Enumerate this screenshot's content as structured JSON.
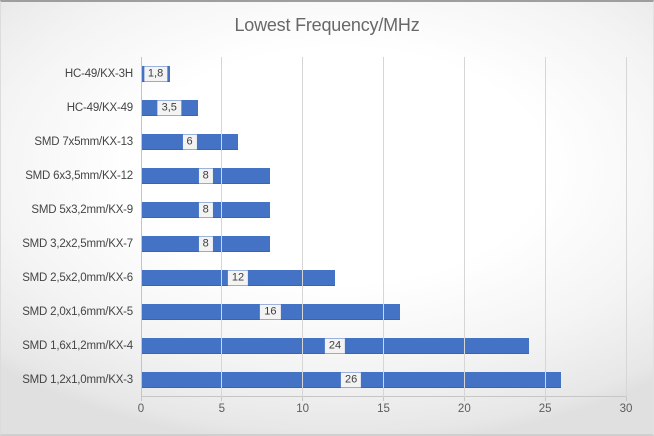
{
  "chart_data": {
    "type": "bar",
    "orientation": "horizontal",
    "title": "Lowest Frequency/MHz",
    "categories": [
      "HC-49/KX-3H",
      "HC-49/KX-49",
      "SMD 7x5mm/KX-13",
      "SMD 6x3,5mm/KX-12",
      "SMD 5x3,2mm/KX-9",
      "SMD 3,2x2,5mm/KX-7",
      "SMD 2,5x2,0mm/KX-6",
      "SMD 2,0x1,6mm/KX-5",
      "SMD 1,6x1,2mm/KX-4",
      "SMD 1,2x1,0mm/KX-3"
    ],
    "values": [
      1.8,
      3.5,
      6,
      8,
      8,
      8,
      12,
      16,
      24,
      26
    ],
    "value_labels": [
      "1,8",
      "3,5",
      "6",
      "8",
      "8",
      "8",
      "12",
      "16",
      "24",
      "26"
    ],
    "xlabel": "",
    "ylabel": "",
    "xlim": [
      0,
      30
    ],
    "x_ticks": [
      0,
      5,
      10,
      15,
      20,
      25,
      30
    ],
    "grid": "vertical-major",
    "legend": "none",
    "data_label_position": "center",
    "colors": {
      "bar": "#4472c4",
      "data_label_background": "#f3f3f3",
      "data_label_text": "#3d3d3d",
      "gridline": "#d6d6d6",
      "axis_text": "#5c5c5c",
      "category_text": "#454545",
      "title_text": "#686868"
    }
  }
}
